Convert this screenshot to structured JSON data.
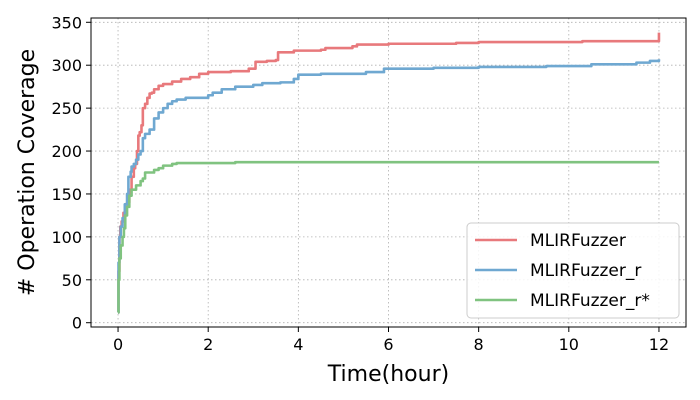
{
  "chart_data": {
    "type": "line",
    "title": "",
    "xlabel": "Time(hour)",
    "ylabel": "# Operation Coverage",
    "xlim": [
      -0.6,
      12.6
    ],
    "ylim": [
      -5,
      355
    ],
    "xticks": [
      0,
      2,
      4,
      6,
      8,
      10,
      12
    ],
    "yticks": [
      0,
      50,
      100,
      150,
      200,
      250,
      300,
      350
    ],
    "grid": true,
    "legend_position": "lower-right",
    "series": [
      {
        "name": "MLIRFuzzer",
        "color": "#e8797c",
        "points": [
          [
            0,
            12
          ],
          [
            0.01,
            60
          ],
          [
            0.03,
            100
          ],
          [
            0.05,
            112
          ],
          [
            0.08,
            118
          ],
          [
            0.12,
            128
          ],
          [
            0.16,
            138
          ],
          [
            0.2,
            140
          ],
          [
            0.25,
            155
          ],
          [
            0.3,
            170
          ],
          [
            0.35,
            180
          ],
          [
            0.38,
            185
          ],
          [
            0.42,
            200
          ],
          [
            0.45,
            218
          ],
          [
            0.48,
            222
          ],
          [
            0.52,
            230
          ],
          [
            0.55,
            250
          ],
          [
            0.6,
            255
          ],
          [
            0.65,
            262
          ],
          [
            0.7,
            267
          ],
          [
            0.75,
            268
          ],
          [
            0.8,
            272
          ],
          [
            0.9,
            276
          ],
          [
            1.0,
            278
          ],
          [
            1.2,
            281
          ],
          [
            1.4,
            284
          ],
          [
            1.6,
            286
          ],
          [
            1.8,
            290
          ],
          [
            2.0,
            292
          ],
          [
            2.5,
            293
          ],
          [
            2.9,
            296
          ],
          [
            3.05,
            304
          ],
          [
            3.3,
            305
          ],
          [
            3.5,
            306
          ],
          [
            3.55,
            315
          ],
          [
            3.9,
            317
          ],
          [
            4.5,
            318
          ],
          [
            4.6,
            320
          ],
          [
            5.2,
            322
          ],
          [
            5.3,
            324
          ],
          [
            6.0,
            325
          ],
          [
            7.5,
            326
          ],
          [
            8.0,
            327
          ],
          [
            10.3,
            328
          ],
          [
            12.0,
            329
          ],
          [
            12.0,
            338
          ]
        ]
      },
      {
        "name": "MLIRFuzzer_r",
        "color": "#6fa8d1",
        "points": [
          [
            0,
            12
          ],
          [
            0.01,
            70
          ],
          [
            0.03,
            100
          ],
          [
            0.06,
            112
          ],
          [
            0.1,
            122
          ],
          [
            0.15,
            138
          ],
          [
            0.2,
            150
          ],
          [
            0.23,
            170
          ],
          [
            0.28,
            176
          ],
          [
            0.3,
            182
          ],
          [
            0.35,
            185
          ],
          [
            0.4,
            190
          ],
          [
            0.45,
            196
          ],
          [
            0.5,
            200
          ],
          [
            0.55,
            215
          ],
          [
            0.6,
            220
          ],
          [
            0.7,
            225
          ],
          [
            0.8,
            238
          ],
          [
            0.9,
            245
          ],
          [
            1.0,
            250
          ],
          [
            1.1,
            255
          ],
          [
            1.2,
            258
          ],
          [
            1.3,
            260
          ],
          [
            1.5,
            262
          ],
          [
            2.0,
            265
          ],
          [
            2.1,
            268
          ],
          [
            2.3,
            272
          ],
          [
            2.6,
            275
          ],
          [
            3.0,
            277
          ],
          [
            3.2,
            279
          ],
          [
            3.6,
            280
          ],
          [
            3.9,
            284
          ],
          [
            4.0,
            289
          ],
          [
            4.5,
            290
          ],
          [
            5.5,
            292
          ],
          [
            5.9,
            296
          ],
          [
            7.0,
            297
          ],
          [
            8.0,
            298
          ],
          [
            9.5,
            299
          ],
          [
            10.5,
            301
          ],
          [
            11.5,
            303
          ],
          [
            11.8,
            305
          ],
          [
            12.0,
            307
          ]
        ]
      },
      {
        "name": "MLIRFuzzer_r*",
        "color": "#80c380",
        "points": [
          [
            0,
            12
          ],
          [
            0.01,
            50
          ],
          [
            0.03,
            75
          ],
          [
            0.06,
            90
          ],
          [
            0.1,
            100
          ],
          [
            0.13,
            110
          ],
          [
            0.16,
            125
          ],
          [
            0.2,
            135
          ],
          [
            0.25,
            148
          ],
          [
            0.3,
            155
          ],
          [
            0.4,
            160
          ],
          [
            0.5,
            165
          ],
          [
            0.55,
            168
          ],
          [
            0.6,
            175
          ],
          [
            0.8,
            178
          ],
          [
            0.9,
            180
          ],
          [
            1.0,
            183
          ],
          [
            1.2,
            185
          ],
          [
            1.3,
            186
          ],
          [
            2.0,
            186
          ],
          [
            2.6,
            187
          ],
          [
            12.0,
            187
          ]
        ]
      }
    ]
  }
}
